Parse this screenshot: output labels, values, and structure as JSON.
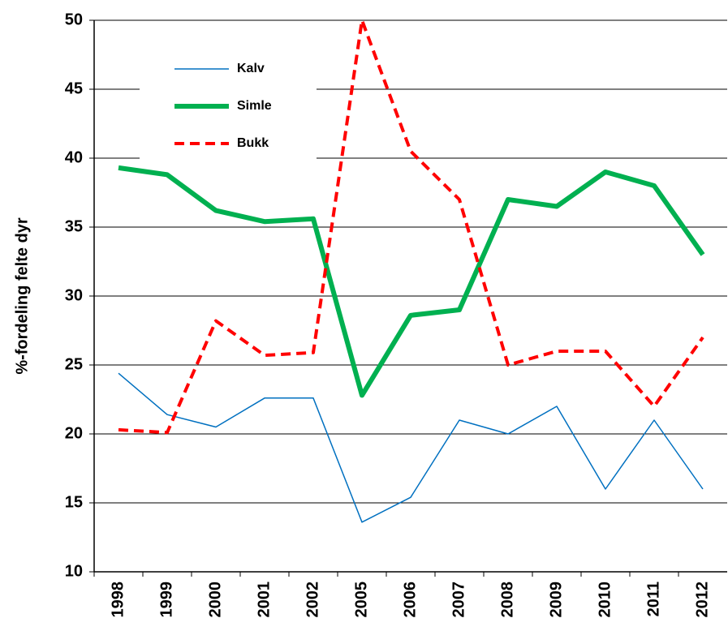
{
  "chart_data": {
    "type": "line",
    "y_label": "%-fordeling felte dyr",
    "categories": [
      "1998",
      "1999",
      "2000",
      "2001",
      "2002",
      "2005",
      "2006",
      "2007",
      "2008",
      "2009",
      "2010",
      "2011",
      "2012"
    ],
    "series": [
      {
        "name": "Kalv",
        "color": "#0070c0",
        "values": [
          24.4,
          21.4,
          20.5,
          22.6,
          22.6,
          13.6,
          15.4,
          21,
          20,
          22,
          16,
          21,
          16
        ]
      },
      {
        "name": "Simle",
        "color": "#00b050",
        "values": [
          39.3,
          38.8,
          36.2,
          35.4,
          35.6,
          22.8,
          28.6,
          29,
          37,
          36.5,
          39,
          38,
          33
        ]
      },
      {
        "name": "Bukk",
        "color": "#ff0000",
        "values": [
          20.3,
          20.1,
          28.2,
          25.7,
          25.9,
          50,
          40.5,
          37,
          25,
          26,
          26,
          22,
          27
        ]
      }
    ],
    "ylim": [
      10,
      50
    ],
    "yticks": [
      10,
      15,
      20,
      25,
      30,
      35,
      40,
      45,
      50
    ],
    "grid": true
  }
}
